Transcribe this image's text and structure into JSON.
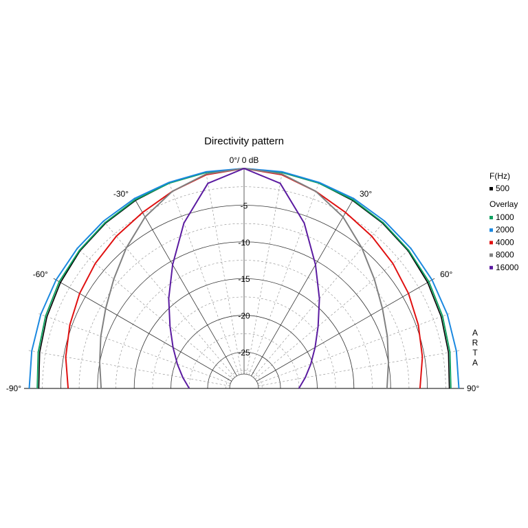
{
  "chart_data": {
    "type": "polar",
    "title": "Directivity pattern",
    "top_label": "0°/ 0 dB",
    "angle_range_deg": [
      -90,
      90
    ],
    "angle_ticks": [
      {
        "deg": -90,
        "label": "-90°"
      },
      {
        "deg": -60,
        "label": "-60°"
      },
      {
        "deg": -30,
        "label": "-30°"
      },
      {
        "deg": 30,
        "label": "30°"
      },
      {
        "deg": 60,
        "label": "60°"
      },
      {
        "deg": 90,
        "label": "90°"
      }
    ],
    "radial_range_db": [
      -28,
      0
    ],
    "radial_ticks": [
      {
        "db": -5,
        "label": "-5"
      },
      {
        "db": -10,
        "label": "-10"
      },
      {
        "db": -15,
        "label": "-15"
      },
      {
        "db": -20,
        "label": "-20"
      },
      {
        "db": -25,
        "label": "-25"
      }
    ],
    "legend": {
      "header": "F(Hz)",
      "overlay_header": "Overlay"
    },
    "watermark": [
      "A",
      "R",
      "T",
      "A"
    ],
    "series": [
      {
        "name": "500",
        "color": "#000000",
        "group": "main",
        "angles": [
          0,
          10,
          20,
          30,
          40,
          50,
          60,
          70,
          80,
          90
        ],
        "db": [
          0,
          -0.1,
          -0.2,
          -0.4,
          -0.6,
          -0.8,
          -1.1,
          -1.4,
          -1.7,
          -2.0
        ]
      },
      {
        "name": "1000",
        "color": "#10a060",
        "group": "overlay",
        "angles": [
          0,
          10,
          20,
          30,
          40,
          50,
          60,
          70,
          80,
          90
        ],
        "db": [
          0,
          -0.1,
          -0.2,
          -0.3,
          -0.5,
          -0.7,
          -0.9,
          -1.2,
          -1.5,
          -1.8
        ]
      },
      {
        "name": "2000",
        "color": "#1a88e0",
        "group": "overlay",
        "angles": [
          0,
          10,
          20,
          30,
          40,
          50,
          60,
          70,
          80,
          90
        ],
        "db": [
          0,
          0,
          -0.1,
          -0.1,
          -0.2,
          -0.3,
          -0.4,
          -0.5,
          -0.6,
          -0.7
        ]
      },
      {
        "name": "4000",
        "color": "#e01010",
        "group": "overlay",
        "angles": [
          0,
          10,
          20,
          30,
          40,
          50,
          60,
          70,
          80,
          90
        ],
        "db": [
          0,
          -0.4,
          -1.4,
          -2.3,
          -2.9,
          -3.5,
          -4.1,
          -4.7,
          -5.3,
          -6.0
        ]
      },
      {
        "name": "8000",
        "color": "#808080",
        "group": "overlay",
        "angles": [
          0,
          10,
          20,
          30,
          40,
          50,
          60,
          70,
          80,
          90
        ],
        "db": [
          0,
          -0.3,
          -1.4,
          -3.0,
          -5.0,
          -6.8,
          -8.2,
          -9.2,
          -10.0,
          -10.5
        ]
      },
      {
        "name": "16000",
        "color": "#5a1aa0",
        "group": "overlay",
        "angles": [
          0,
          10,
          20,
          30,
          40,
          50,
          60,
          70,
          80,
          90
        ],
        "db": [
          0,
          -1.6,
          -6.0,
          -10.5,
          -14.0,
          -16.8,
          -18.8,
          -20.3,
          -21.5,
          -22.5
        ]
      }
    ]
  }
}
